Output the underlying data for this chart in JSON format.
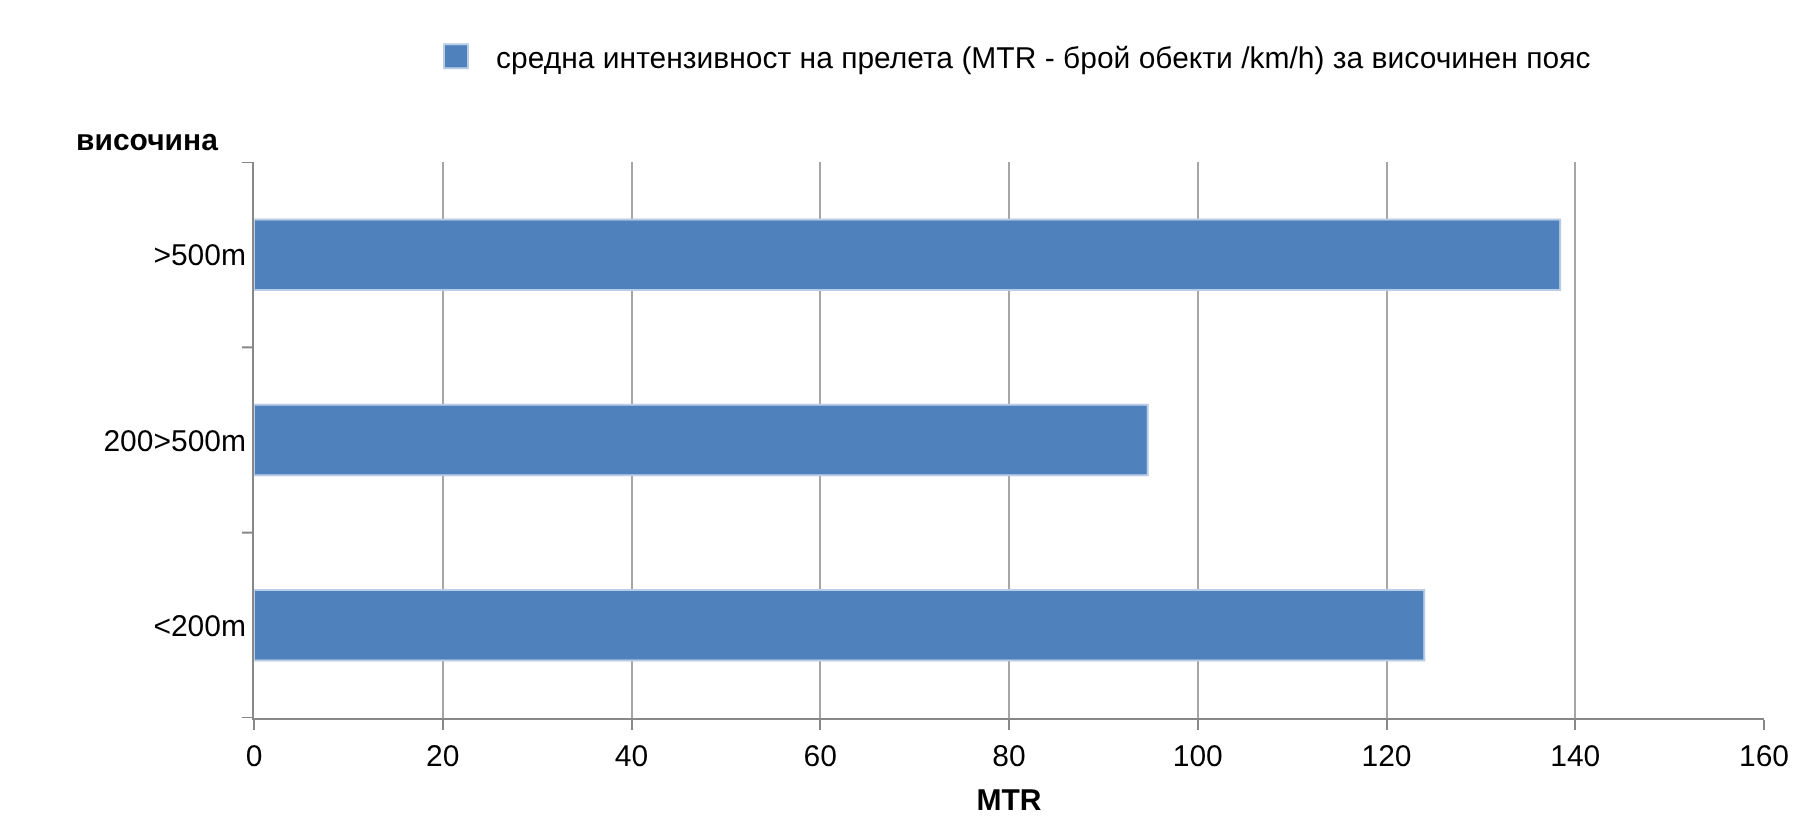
{
  "chart_data": {
    "type": "bar",
    "orientation": "horizontal",
    "categories": [
      ">500m",
      "200>500m",
      "<200m"
    ],
    "series": [
      {
        "name": "средна интензивност на прелета (MTR - брой обекти /km/h) за височинен пояс",
        "color": "#4f81bd",
        "values": [
          138.4,
          94.7,
          124
        ]
      }
    ],
    "xlabel": "MTR",
    "ylabel": "височина",
    "xlim": [
      0,
      160
    ],
    "xticks": [
      0,
      20,
      40,
      60,
      80,
      100,
      120,
      140,
      160
    ],
    "grid": "x",
    "legend": "top"
  }
}
